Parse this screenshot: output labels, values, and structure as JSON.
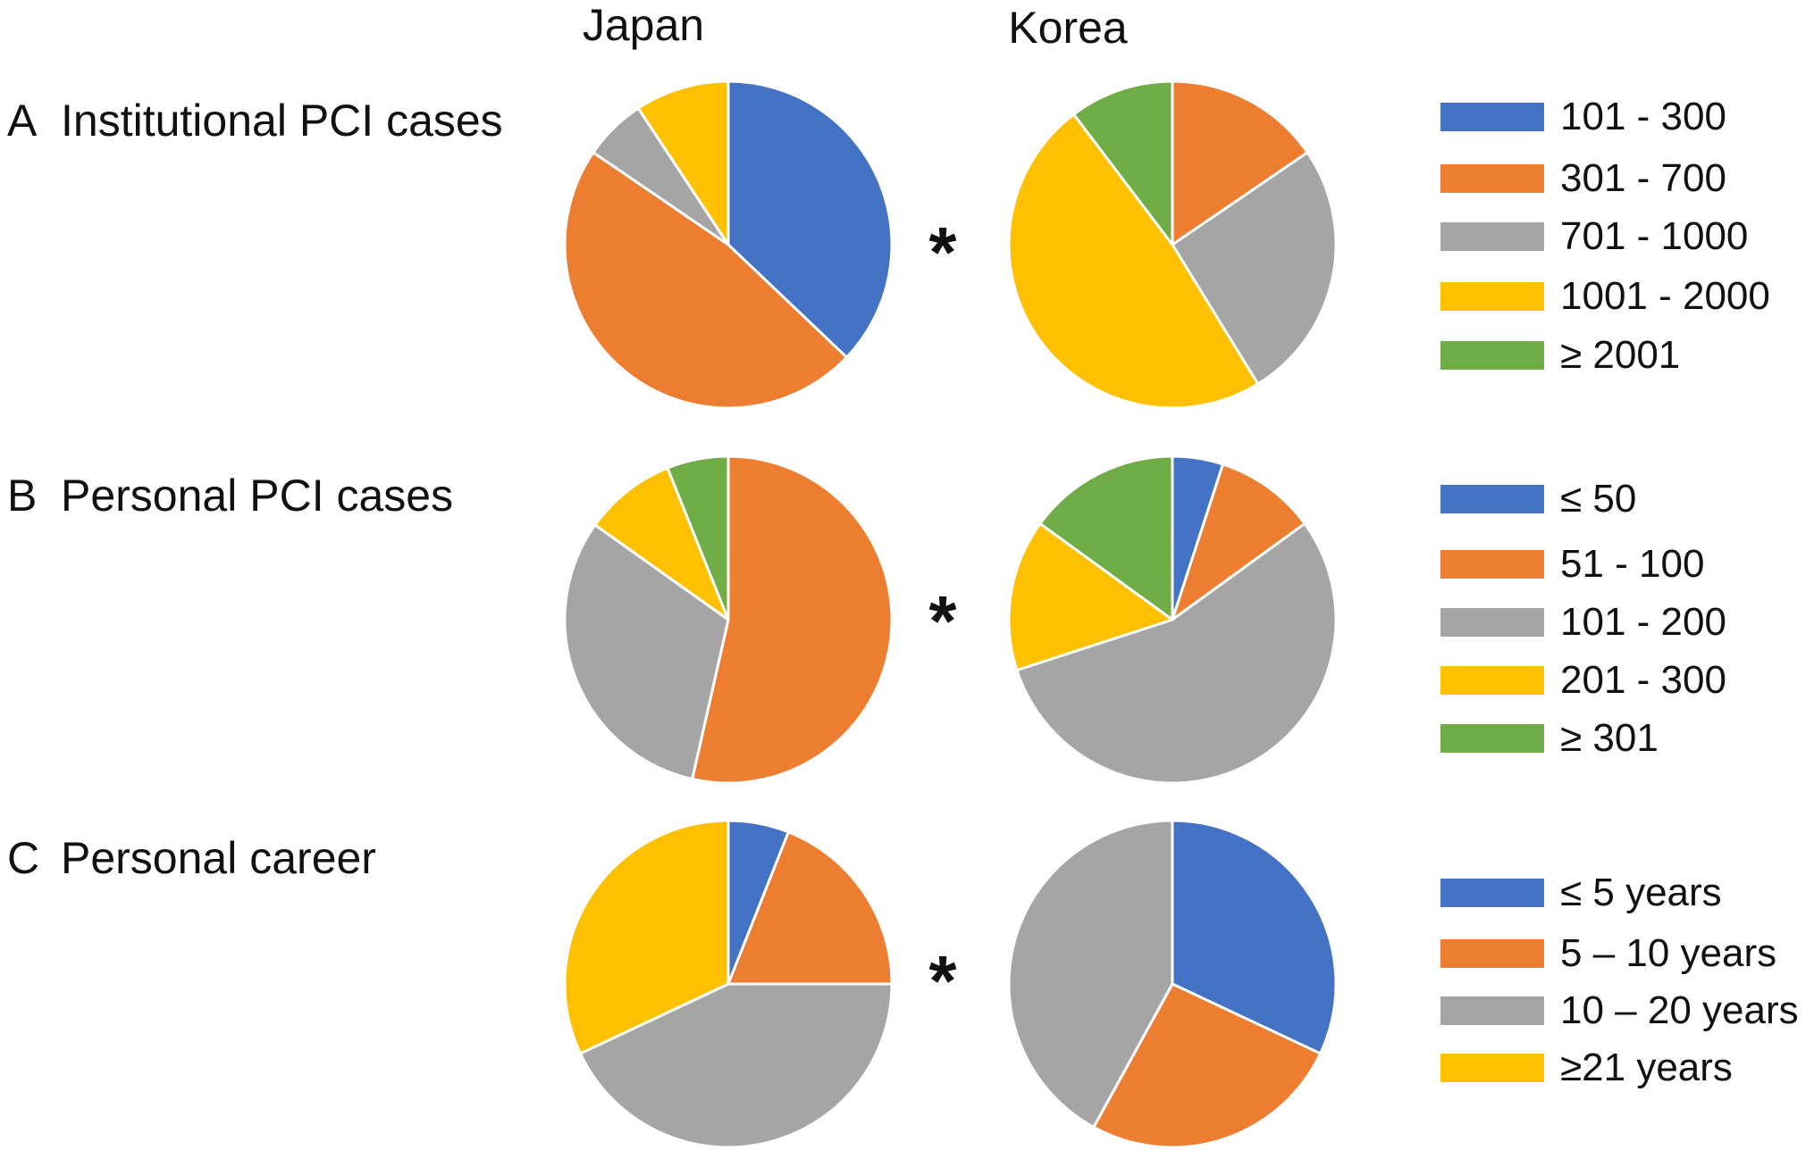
{
  "columns": [
    "Japan",
    "Korea"
  ],
  "colors": {
    "blue": "#4472C4",
    "orange": "#ED7D31",
    "gray": "#A5A5A5",
    "yellow": "#FFC000",
    "green": "#70AD47"
  },
  "chart_data": [
    {
      "type": "pie",
      "panel": "A",
      "title": "Institutional PCI cases",
      "significance": "*",
      "categories": [
        "101 - 300",
        "301 - 700",
        "701 - 1000",
        "1001 - 2000",
        "≥ 2001"
      ],
      "category_colors": [
        "#4472C4",
        "#ED7D31",
        "#A5A5A5",
        "#FFC000",
        "#70AD47"
      ],
      "series": [
        {
          "name": "Japan",
          "values": [
            36,
            46,
            6,
            9,
            0
          ]
        },
        {
          "name": "Korea",
          "values": [
            0,
            15,
            25,
            47,
            10
          ]
        }
      ]
    },
    {
      "type": "pie",
      "panel": "B",
      "title": "Personal PCI cases",
      "significance": "*",
      "categories": [
        "≤ 50",
        "51 - 100",
        "101 - 200",
        "201 - 300",
        "≥ 301"
      ],
      "category_colors": [
        "#4472C4",
        "#ED7D31",
        "#A5A5A5",
        "#FFC000",
        "#70AD47"
      ],
      "series": [
        {
          "name": "Japan",
          "values": [
            0,
            53,
            31,
            9,
            6
          ]
        },
        {
          "name": "Korea",
          "values": [
            5,
            10,
            55,
            15,
            15
          ]
        }
      ]
    },
    {
      "type": "pie",
      "panel": "C",
      "title": "Personal career",
      "significance": "*",
      "categories": [
        "≤ 5 years",
        "5 – 10 years",
        "10 – 20 years",
        "≥21 years"
      ],
      "category_colors": [
        "#4472C4",
        "#ED7D31",
        "#A5A5A5",
        "#FFC000"
      ],
      "series": [
        {
          "name": "Japan",
          "values": [
            6,
            19,
            43,
            32
          ]
        },
        {
          "name": "Korea",
          "values": [
            32,
            26,
            42,
            0
          ]
        }
      ]
    }
  ]
}
